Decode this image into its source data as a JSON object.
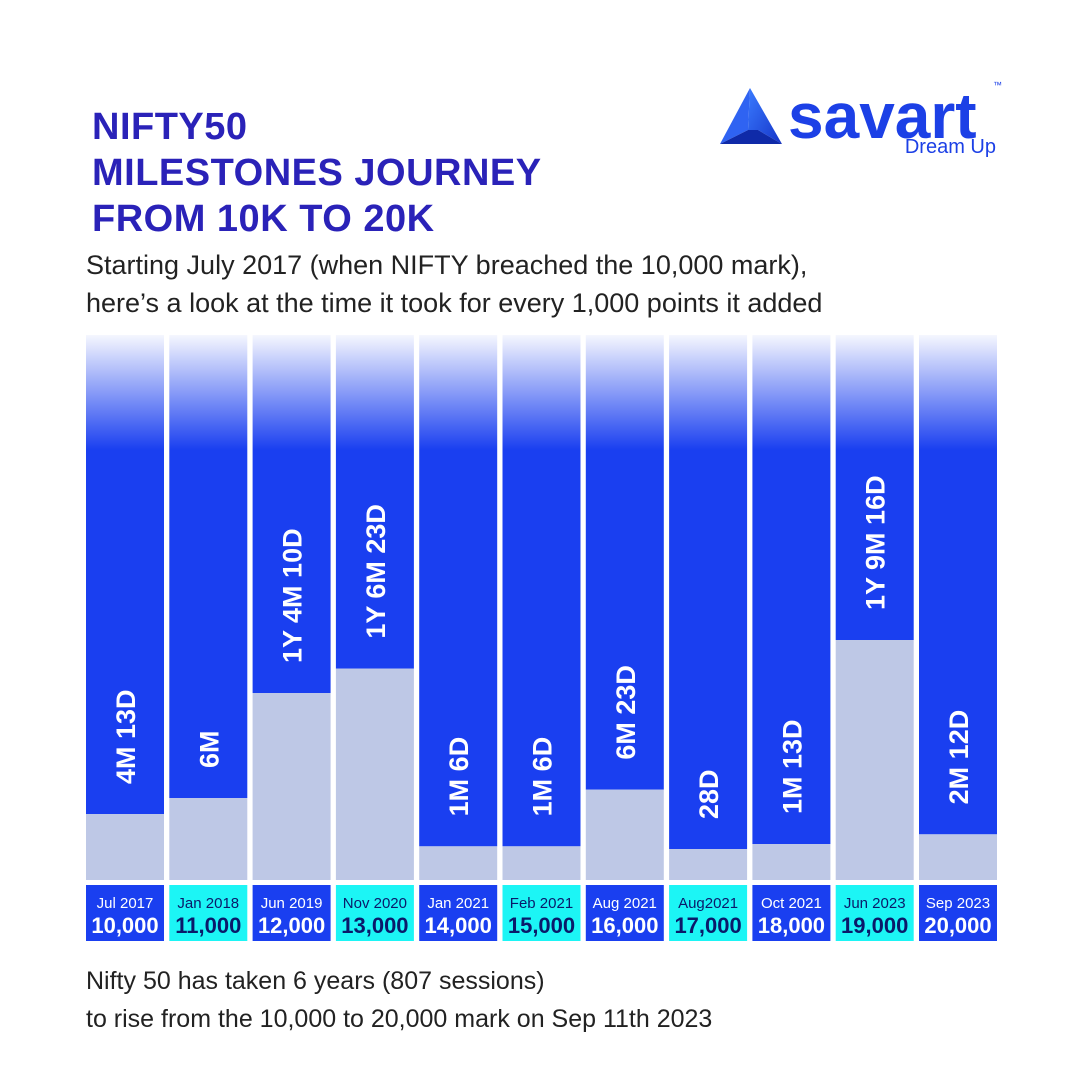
{
  "title_lines": [
    "NIFTY50",
    "MILESTONES JOURNEY",
    "FROM 10K TO 20K"
  ],
  "subtitle_lines": [
    "Starting July 2017 (when NIFTY breached the 10,000 mark),",
    "here’s a look at the time it took for every 1,000 points it added"
  ],
  "footer_lines": [
    "Nifty 50 has taken 6 years (807 sessions)",
    "to rise from the 10,000 to 20,000 mark on Sep 11th 2023"
  ],
  "logo": {
    "wordmark": "savart",
    "tagline": "Dream Up",
    "trademark": "™"
  },
  "colors": {
    "bar_blue": "#1a3ff0",
    "bar_grey": "#bec8e6",
    "box_blue": "#1a3ff0",
    "box_cyan": "#1cf5f5",
    "title": "#2a22b8"
  },
  "chart_data": {
    "type": "bar",
    "title": "NIFTY50 MILESTONES JOURNEY FROM 10K TO 20K",
    "categories": [
      "Jul 2017",
      "Jan 2018",
      "Jun 2019",
      "Nov 2020",
      "Jan 2021",
      "Feb 2021",
      "Aug 2021",
      "Aug2021",
      "Oct 2021",
      "Jun 2023",
      "Sep 2023"
    ],
    "levels": [
      "10,000",
      "11,000",
      "12,000",
      "13,000",
      "14,000",
      "15,000",
      "16,000",
      "17,000",
      "18,000",
      "19,000",
      "20,000"
    ],
    "duration_labels": [
      "4M 13D",
      "6M",
      "1Y 4M 10D",
      "1Y 6M 23D",
      "1M 6D",
      "1M 6D",
      "6M 23D",
      "28D",
      "1M 13D",
      "1Y 9M 16D",
      "2M 12D"
    ],
    "values_days": [
      133,
      181,
      496,
      569,
      36,
      36,
      206,
      28,
      43,
      655,
      72
    ],
    "box_colors": [
      "blue",
      "cyan",
      "blue",
      "cyan",
      "blue",
      "cyan",
      "blue",
      "cyan",
      "blue",
      "cyan",
      "blue"
    ]
  }
}
